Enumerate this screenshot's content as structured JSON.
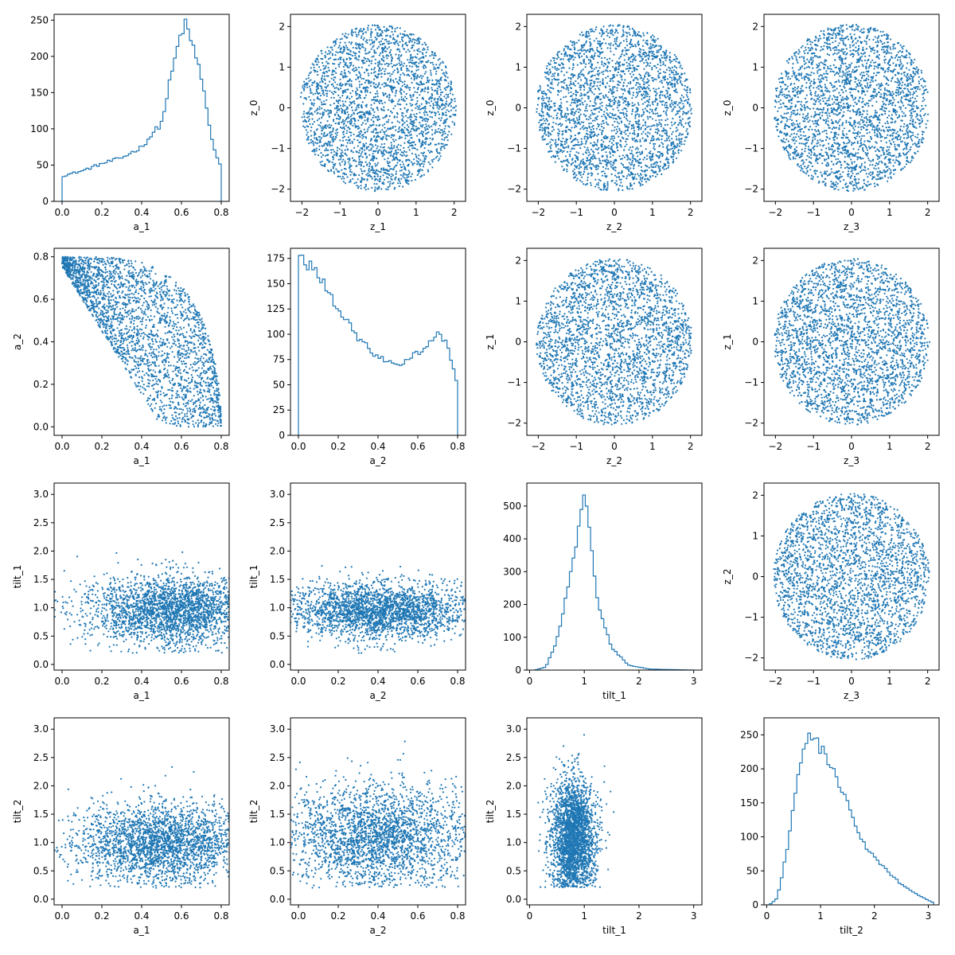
{
  "figure": {
    "type": "corner-matrix",
    "marker_color": "#1f77b4",
    "grid": false,
    "legend": "none"
  },
  "chart_data": [
    {
      "type": "histogram",
      "xlabel": "a_1",
      "ylabel": "",
      "xlim": [
        -0.04,
        0.84
      ],
      "ylim": [
        0,
        258
      ],
      "xticks": [
        "0.0",
        "0.2",
        "0.4",
        "0.6",
        "0.8"
      ],
      "xtick_values": [
        0,
        0.2,
        0.4,
        0.6,
        0.8
      ],
      "yticks": [
        "0",
        "50",
        "100",
        "150",
        "200",
        "250"
      ],
      "ytick_values": [
        0,
        50,
        100,
        150,
        200,
        250
      ],
      "x": [
        0,
        0.1,
        0.2,
        0.3,
        0.4,
        0.5,
        0.55,
        0.6,
        0.62,
        0.65,
        0.68,
        0.72,
        0.76,
        0.8
      ],
      "y": [
        35,
        42,
        52,
        60,
        75,
        108,
        175,
        235,
        243,
        220,
        195,
        140,
        75,
        45
      ]
    },
    {
      "type": "scatter",
      "xlabel": "z_1",
      "ylabel": "z_0",
      "xlim": [
        -2.3,
        2.3
      ],
      "ylim": [
        -2.3,
        2.3
      ],
      "xticks": [
        "−2",
        "−1",
        "0",
        "1",
        "2"
      ],
      "xtick_values": [
        -2,
        -1,
        0,
        1,
        2
      ],
      "yticks": [
        "−2",
        "−1",
        "0",
        "1",
        "2"
      ],
      "ytick_values": [
        -2,
        -1,
        0,
        1,
        2
      ],
      "shape": "disk",
      "center": [
        0,
        0
      ],
      "radius": 2.05
    },
    {
      "type": "scatter",
      "xlabel": "z_2",
      "ylabel": "z_0",
      "xlim": [
        -2.3,
        2.3
      ],
      "ylim": [
        -2.3,
        2.3
      ],
      "xticks": [
        "−2",
        "−1",
        "0",
        "1",
        "2"
      ],
      "xtick_values": [
        -2,
        -1,
        0,
        1,
        2
      ],
      "yticks": [
        "−2",
        "−1",
        "0",
        "1",
        "2"
      ],
      "ytick_values": [
        -2,
        -1,
        0,
        1,
        2
      ],
      "shape": "disk",
      "center": [
        0,
        0
      ],
      "radius": 2.05
    },
    {
      "type": "scatter",
      "xlabel": "z_3",
      "ylabel": "z_0",
      "xlim": [
        -2.3,
        2.3
      ],
      "ylim": [
        -2.3,
        2.3
      ],
      "xticks": [
        "−2",
        "−1",
        "0",
        "1",
        "2"
      ],
      "xtick_values": [
        -2,
        -1,
        0,
        1,
        2
      ],
      "yticks": [
        "−2",
        "−1",
        "0",
        "1",
        "2"
      ],
      "ytick_values": [
        -2,
        -1,
        0,
        1,
        2
      ],
      "shape": "disk",
      "center": [
        0,
        0
      ],
      "radius": 2.05
    },
    {
      "type": "scatter",
      "xlabel": "a_1",
      "ylabel": "a_2",
      "xlim": [
        -0.04,
        0.84
      ],
      "ylim": [
        -0.04,
        0.84
      ],
      "xticks": [
        "0.0",
        "0.2",
        "0.4",
        "0.6",
        "0.8"
      ],
      "xtick_values": [
        0,
        0.2,
        0.4,
        0.6,
        0.8
      ],
      "yticks": [
        "0.0",
        "0.2",
        "0.4",
        "0.6",
        "0.8"
      ],
      "ytick_values": [
        0,
        0.2,
        0.4,
        0.6,
        0.8
      ],
      "shape": "spin-region"
    },
    {
      "type": "histogram",
      "xlabel": "a_2",
      "ylabel": "",
      "xlim": [
        -0.04,
        0.84
      ],
      "ylim": [
        0,
        185
      ],
      "xticks": [
        "0.0",
        "0.2",
        "0.4",
        "0.6",
        "0.8"
      ],
      "xtick_values": [
        0,
        0.2,
        0.4,
        0.6,
        0.8
      ],
      "yticks": [
        "0",
        "25",
        "50",
        "75",
        "100",
        "125",
        "150",
        "175"
      ],
      "ytick_values": [
        0,
        25,
        50,
        75,
        100,
        125,
        150,
        175
      ],
      "x": [
        0,
        0.05,
        0.1,
        0.2,
        0.3,
        0.4,
        0.5,
        0.6,
        0.7,
        0.75,
        0.8
      ],
      "y": [
        178,
        170,
        158,
        125,
        95,
        78,
        70,
        82,
        100,
        92,
        48
      ]
    },
    {
      "type": "scatter",
      "xlabel": "z_2",
      "ylabel": "z_1",
      "xlim": [
        -2.3,
        2.3
      ],
      "ylim": [
        -2.3,
        2.3
      ],
      "xticks": [
        "−2",
        "−1",
        "0",
        "1",
        "2"
      ],
      "xtick_values": [
        -2,
        -1,
        0,
        1,
        2
      ],
      "yticks": [
        "−2",
        "−1",
        "0",
        "1",
        "2"
      ],
      "ytick_values": [
        -2,
        -1,
        0,
        1,
        2
      ],
      "shape": "disk",
      "center": [
        0,
        0
      ],
      "radius": 2.05
    },
    {
      "type": "scatter",
      "xlabel": "z_3",
      "ylabel": "z_1",
      "xlim": [
        -2.3,
        2.3
      ],
      "ylim": [
        -2.3,
        2.3
      ],
      "xticks": [
        "−2",
        "−1",
        "0",
        "1",
        "2"
      ],
      "xtick_values": [
        -2,
        -1,
        0,
        1,
        2
      ],
      "yticks": [
        "−2",
        "−1",
        "0",
        "1",
        "2"
      ],
      "ytick_values": [
        -2,
        -1,
        0,
        1,
        2
      ],
      "shape": "disk",
      "center": [
        0,
        0
      ],
      "radius": 2.05
    },
    {
      "type": "scatter",
      "xlabel": "a_1",
      "ylabel": "tilt_1",
      "xlim": [
        -0.04,
        0.84
      ],
      "ylim": [
        -0.1,
        3.2
      ],
      "xticks": [
        "0.0",
        "0.2",
        "0.4",
        "0.6",
        "0.8"
      ],
      "xtick_values": [
        0,
        0.2,
        0.4,
        0.6,
        0.8
      ],
      "yticks": [
        "0.0",
        "0.5",
        "1.0",
        "1.5",
        "2.0",
        "2.5",
        "3.0"
      ],
      "ytick_values": [
        0,
        0.5,
        1,
        1.5,
        2,
        2.5,
        3
      ],
      "shape": "band",
      "center": [
        0.55,
        0.95
      ],
      "spread": [
        0.22,
        0.3
      ]
    },
    {
      "type": "scatter",
      "xlabel": "a_2",
      "ylabel": "tilt_1",
      "xlim": [
        -0.04,
        0.84
      ],
      "ylim": [
        -0.1,
        3.2
      ],
      "xticks": [
        "0.0",
        "0.2",
        "0.4",
        "0.6",
        "0.8"
      ],
      "xtick_values": [
        0,
        0.2,
        0.4,
        0.6,
        0.8
      ],
      "yticks": [
        "0.0",
        "0.5",
        "1.0",
        "1.5",
        "2.0",
        "2.5",
        "3.0"
      ],
      "ytick_values": [
        0,
        0.5,
        1,
        1.5,
        2,
        2.5,
        3
      ],
      "shape": "band",
      "center": [
        0.4,
        0.95
      ],
      "spread": [
        0.25,
        0.25
      ]
    },
    {
      "type": "histogram",
      "xlabel": "tilt_1",
      "ylabel": "",
      "xlim": [
        -0.05,
        3.15
      ],
      "ylim": [
        0,
        570
      ],
      "xticks": [
        "0",
        "1",
        "2",
        "3"
      ],
      "xtick_values": [
        0,
        1,
        2,
        3
      ],
      "yticks": [
        "0",
        "100",
        "200",
        "300",
        "400",
        "500"
      ],
      "ytick_values": [
        0,
        100,
        200,
        300,
        400,
        500
      ],
      "x": [
        0.1,
        0.3,
        0.5,
        0.7,
        0.85,
        0.95,
        1.0,
        1.1,
        1.25,
        1.5,
        1.8,
        2.2,
        3.0
      ],
      "y": [
        0,
        10,
        90,
        250,
        390,
        500,
        540,
        420,
        200,
        70,
        15,
        3,
        0
      ]
    },
    {
      "type": "scatter",
      "xlabel": "z_3",
      "ylabel": "z_2",
      "xlim": [
        -2.3,
        2.3
      ],
      "ylim": [
        -2.3,
        2.3
      ],
      "xticks": [
        "−2",
        "−1",
        "0",
        "1",
        "2"
      ],
      "xtick_values": [
        -2,
        -1,
        0,
        1,
        2
      ],
      "yticks": [
        "−2",
        "−1",
        "0",
        "1",
        "2"
      ],
      "ytick_values": [
        -2,
        -1,
        0,
        1,
        2
      ],
      "shape": "disk",
      "center": [
        0,
        0
      ],
      "radius": 2.05
    },
    {
      "type": "scatter",
      "xlabel": "a_1",
      "ylabel": "tilt_2",
      "xlim": [
        -0.04,
        0.84
      ],
      "ylim": [
        -0.1,
        3.2
      ],
      "xticks": [
        "0.0",
        "0.2",
        "0.4",
        "0.6",
        "0.8"
      ],
      "xtick_values": [
        0,
        0.2,
        0.4,
        0.6,
        0.8
      ],
      "yticks": [
        "0.0",
        "0.5",
        "1.0",
        "1.5",
        "2.0",
        "2.5",
        "3.0"
      ],
      "ytick_values": [
        0,
        0.5,
        1,
        1.5,
        2,
        2.5,
        3
      ],
      "shape": "band",
      "center": [
        0.5,
        1.0
      ],
      "spread": [
        0.22,
        0.35
      ]
    },
    {
      "type": "scatter",
      "xlabel": "a_2",
      "ylabel": "tilt_2",
      "xlim": [
        -0.04,
        0.84
      ],
      "ylim": [
        -0.1,
        3.2
      ],
      "xticks": [
        "0.0",
        "0.2",
        "0.4",
        "0.6",
        "0.8"
      ],
      "xtick_values": [
        0,
        0.2,
        0.4,
        0.6,
        0.8
      ],
      "yticks": [
        "0.0",
        "0.5",
        "1.0",
        "1.5",
        "2.0",
        "2.5",
        "3.0"
      ],
      "ytick_values": [
        0,
        0.5,
        1,
        1.5,
        2,
        2.5,
        3
      ],
      "shape": "band",
      "center": [
        0.4,
        1.1
      ],
      "spread": [
        0.24,
        0.45
      ]
    },
    {
      "type": "scatter",
      "xlabel": "tilt_1",
      "ylabel": "tilt_2",
      "xlim": [
        -0.05,
        3.15
      ],
      "ylim": [
        -0.1,
        3.2
      ],
      "xticks": [
        "0",
        "1",
        "2",
        "3"
      ],
      "xtick_values": [
        0,
        1,
        2,
        3
      ],
      "yticks": [
        "0.0",
        "0.5",
        "1.0",
        "1.5",
        "2.0",
        "2.5",
        "3.0"
      ],
      "ytick_values": [
        0,
        0.5,
        1,
        1.5,
        2,
        2.5,
        3
      ],
      "shape": "band",
      "center": [
        0.8,
        1.1
      ],
      "spread": [
        0.2,
        0.5
      ]
    },
    {
      "type": "histogram",
      "xlabel": "tilt_2",
      "ylabel": "",
      "xlim": [
        -0.05,
        3.2
      ],
      "ylim": [
        0,
        275
      ],
      "xticks": [
        "0",
        "1",
        "2",
        "3"
      ],
      "xtick_values": [
        0,
        1,
        2,
        3
      ],
      "yticks": [
        "0",
        "50",
        "100",
        "150",
        "200",
        "250"
      ],
      "ytick_values": [
        0,
        50,
        100,
        150,
        200,
        250
      ],
      "x": [
        0.05,
        0.2,
        0.4,
        0.6,
        0.8,
        1.0,
        1.2,
        1.5,
        1.8,
        2.1,
        2.5,
        2.8,
        3.1
      ],
      "y": [
        0,
        10,
        90,
        200,
        250,
        230,
        205,
        150,
        90,
        60,
        30,
        15,
        3
      ]
    }
  ]
}
